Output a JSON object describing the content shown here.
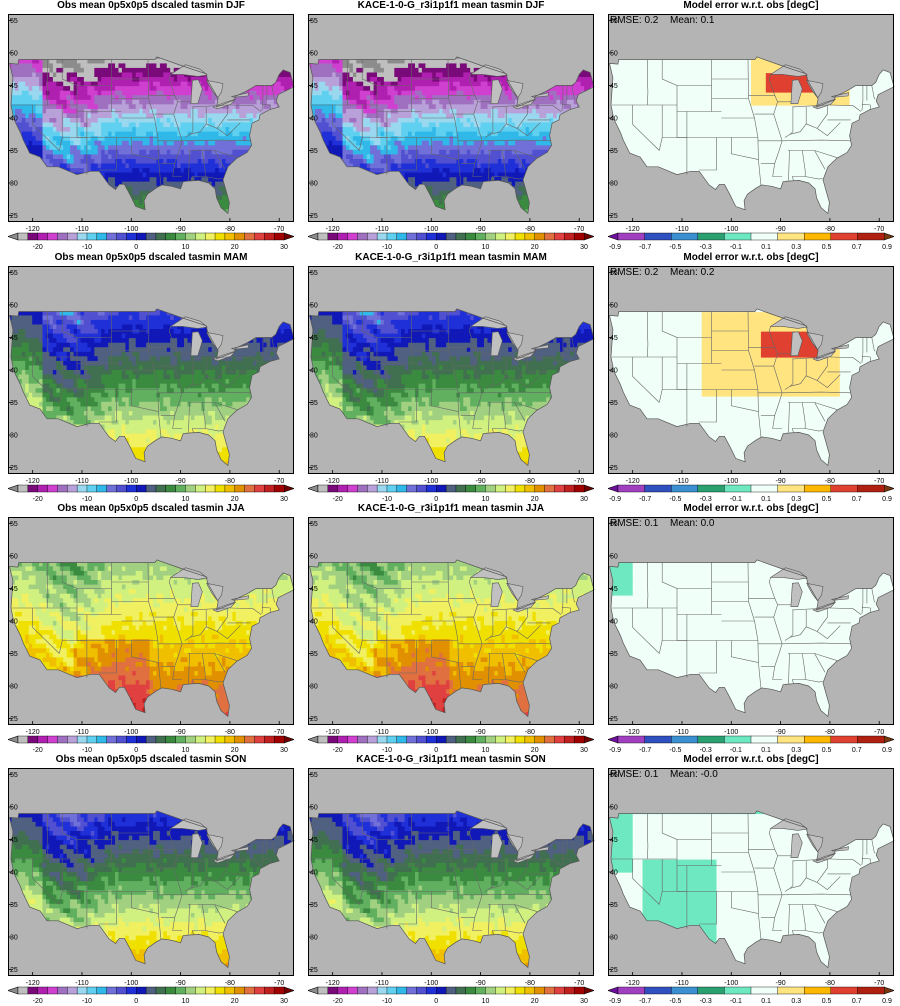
{
  "rows": [
    {
      "season": "DJF",
      "obs_title": "Obs mean 0p5x0p5 dscaled tasmin DJF",
      "model_title": "KACE-1-0-G_r3i1p1f1 mean tasmin DJF",
      "err_title": "Model error w.r.t. obs [degC]",
      "rmse": "RMSE: 0.2",
      "mean": "Mean: 0.1"
    },
    {
      "season": "MAM",
      "obs_title": "Obs mean 0p5x0p5 dscaled tasmin MAM",
      "model_title": "KACE-1-0-G_r3i1p1f1 mean tasmin MAM",
      "err_title": "Model error w.r.t. obs [degC]",
      "rmse": "RMSE: 0.2",
      "mean": "Mean: 0.2"
    },
    {
      "season": "JJA",
      "obs_title": "Obs mean 0p5x0p5 dscaled tasmin JJA",
      "model_title": "KACE-1-0-G_r3i1p1f1 mean tasmin JJA",
      "err_title": "Model error w.r.t. obs [degC]",
      "rmse": "RMSE: 0.1",
      "mean": "Mean: 0.0"
    },
    {
      "season": "SON",
      "obs_title": "Obs mean 0p5x0p5 dscaled tasmin SON",
      "model_title": "KACE-1-0-G_r3i1p1f1 mean tasmin SON",
      "err_title": "Model error w.r.t. obs [degC]",
      "rmse": "RMSE: 0.1",
      "mean": "Mean: -0.0"
    }
  ],
  "axes": {
    "lon_ticks": [
      "-120",
      "-110",
      "-100",
      "-90",
      "-80",
      "-70"
    ],
    "lat_ticks": [
      "25",
      "30",
      "35",
      "40",
      "45",
      "50",
      "55"
    ],
    "lon_range": [
      -125,
      -67
    ],
    "lat_range": [
      24,
      56
    ]
  },
  "temp_colorbar": {
    "labels": [
      "-20",
      "-10",
      "0",
      "10",
      "20",
      "30"
    ],
    "colors": [
      "#8c8c8c",
      "#bfbfbf",
      "#7a0a7a",
      "#b020b0",
      "#d040d0",
      "#a070c0",
      "#b8a0d8",
      "#9ad8f0",
      "#5fd0f0",
      "#30b8e8",
      "#7070d8",
      "#5050d0",
      "#2030d8",
      "#1018b8",
      "#506080",
      "#407050",
      "#3a8a40",
      "#60b060",
      "#a0d080",
      "#d0f080",
      "#f0f060",
      "#f0e000",
      "#f0c000",
      "#e09000",
      "#e07040",
      "#e04040",
      "#c02020",
      "#a00000",
      "#700000"
    ]
  },
  "err_colorbar": {
    "labels": [
      "-0.9",
      "-0.7",
      "-0.5",
      "-0.3",
      "-0.1",
      "0.1",
      "0.3",
      "0.5",
      "0.7",
      "0.9"
    ],
    "colors": [
      "#7010a0",
      "#a040c0",
      "#3050c0",
      "#3a90d0",
      "#2aa070",
      "#6ee8c0",
      "#f0fff8",
      "#ffe480",
      "#ffb800",
      "#e04030",
      "#b02010",
      "#7a3a10"
    ]
  },
  "colors": {
    "land_mask": "#b4b4b4",
    "water": "#c0c0c0"
  }
}
